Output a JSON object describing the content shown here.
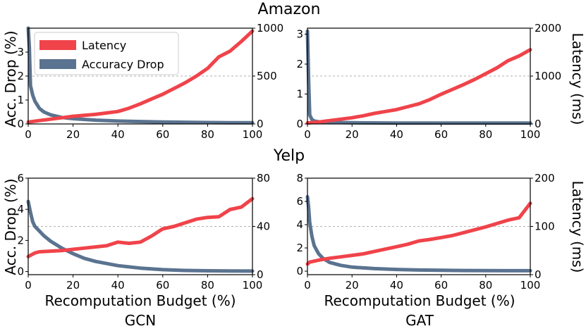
{
  "figure": {
    "row_titles": [
      "Amazon",
      "Yelp"
    ],
    "col_titles": [
      "GCN",
      "GAT"
    ],
    "y_left_label": "Acc. Drop (%)",
    "y_right_label": "Latency (ms)",
    "x_label": "Recomputation Budget (%)"
  },
  "legend": {
    "entries": [
      {
        "label": "Latency",
        "color": "#f0434a"
      },
      {
        "label": "Accuracy Drop",
        "color": "#5a7390"
      }
    ]
  },
  "colors": {
    "latency": "#f0434a",
    "accuracy": "#5a7390",
    "grid": "#b0b0b0"
  },
  "chart_data": [
    {
      "type": "line",
      "row": "Amazon",
      "col": "GCN",
      "xlim": [
        0,
        100
      ],
      "xticks": [
        0,
        20,
        40,
        60,
        80,
        100
      ],
      "ylim_left": [
        0,
        4
      ],
      "yticks_left": [
        0,
        1,
        2,
        3
      ],
      "ylim_right": [
        0,
        1000
      ],
      "yticks_right": [
        0,
        500,
        1000
      ],
      "grid": "horizontal, right axis",
      "series": [
        {
          "name": "Latency",
          "axis": "right",
          "x": [
            0,
            5,
            10,
            15,
            20,
            25,
            30,
            35,
            40,
            45,
            50,
            55,
            60,
            65,
            70,
            75,
            80,
            85,
            90,
            95,
            100
          ],
          "y": [
            20,
            35,
            50,
            65,
            80,
            90,
            100,
            115,
            130,
            165,
            210,
            260,
            310,
            370,
            430,
            500,
            580,
            700,
            760,
            860,
            970
          ]
        },
        {
          "name": "Accuracy Drop",
          "axis": "left",
          "x": [
            0,
            0.5,
            1,
            2,
            3,
            4,
            5,
            7,
            10,
            15,
            20,
            30,
            40,
            50,
            60,
            70,
            80,
            90,
            100
          ],
          "y": [
            4.0,
            3.2,
            1.6,
            1.2,
            0.95,
            0.8,
            0.65,
            0.5,
            0.38,
            0.27,
            0.22,
            0.16,
            0.12,
            0.1,
            0.08,
            0.07,
            0.06,
            0.05,
            0.05
          ]
        }
      ]
    },
    {
      "type": "line",
      "row": "Amazon",
      "col": "GAT",
      "xlim": [
        0,
        100
      ],
      "xticks": [
        0,
        20,
        40,
        60,
        80,
        100
      ],
      "ylim_left": [
        0,
        3.2
      ],
      "yticks_left": [
        0,
        1,
        2,
        3
      ],
      "ylim_right": [
        0,
        2000
      ],
      "yticks_right": [
        0,
        1000,
        2000
      ],
      "grid": "horizontal, right axis",
      "series": [
        {
          "name": "Latency",
          "axis": "right",
          "x": [
            0,
            5,
            10,
            15,
            20,
            25,
            30,
            35,
            40,
            45,
            50,
            55,
            60,
            65,
            70,
            75,
            80,
            85,
            90,
            95,
            100
          ],
          "y": [
            20,
            40,
            70,
            100,
            130,
            170,
            220,
            260,
            300,
            360,
            420,
            510,
            620,
            720,
            820,
            930,
            1050,
            1170,
            1320,
            1420,
            1550
          ]
        },
        {
          "name": "Accuracy Drop",
          "axis": "left",
          "x": [
            0,
            0.5,
            1,
            2,
            3,
            5,
            10,
            20,
            40,
            60,
            80,
            100
          ],
          "y": [
            3.1,
            1.5,
            0.3,
            0.15,
            0.1,
            0.07,
            0.05,
            0.04,
            0.03,
            0.03,
            0.03,
            0.03
          ]
        }
      ]
    },
    {
      "type": "line",
      "row": "Yelp",
      "col": "GCN",
      "xlim": [
        0,
        100
      ],
      "xticks": [
        0,
        20,
        40,
        60,
        80,
        100
      ],
      "ylim_left": [
        -0.2,
        6
      ],
      "yticks_left": [
        0,
        2,
        4,
        6
      ],
      "ylim_right": [
        0,
        80
      ],
      "yticks_right": [
        0,
        40,
        80
      ],
      "grid": "horizontal, right axis",
      "series": [
        {
          "name": "Latency",
          "axis": "right",
          "x": [
            0,
            1,
            3,
            5,
            10,
            15,
            20,
            25,
            30,
            35,
            40,
            45,
            50,
            55,
            60,
            65,
            70,
            75,
            80,
            85,
            90,
            95,
            100
          ],
          "y": [
            15,
            16,
            18,
            19,
            19.5,
            20,
            21,
            22,
            23,
            24,
            27,
            26,
            27,
            32,
            38,
            40,
            43,
            46,
            47.5,
            48,
            54,
            56,
            63
          ]
        },
        {
          "name": "Accuracy Drop",
          "axis": "left",
          "x": [
            0,
            1,
            2,
            3,
            5,
            7,
            10,
            15,
            20,
            25,
            30,
            40,
            50,
            60,
            70,
            80,
            90,
            100
          ],
          "y": [
            4.5,
            3.8,
            3.2,
            2.9,
            2.6,
            2.3,
            1.95,
            1.5,
            1.15,
            0.85,
            0.65,
            0.38,
            0.22,
            0.12,
            0.07,
            0.05,
            0.04,
            0.03
          ]
        }
      ]
    },
    {
      "type": "line",
      "row": "Yelp",
      "col": "GAT",
      "xlim": [
        0,
        100
      ],
      "xticks": [
        0,
        20,
        40,
        60,
        80,
        100
      ],
      "ylim_left": [
        -0.3,
        8
      ],
      "yticks_left": [
        0,
        2,
        4,
        6,
        8
      ],
      "ylim_right": [
        0,
        200
      ],
      "yticks_right": [
        0,
        100,
        200
      ],
      "grid": "horizontal, right axis",
      "series": [
        {
          "name": "Latency",
          "axis": "right",
          "x": [
            0,
            1,
            3,
            5,
            10,
            15,
            20,
            25,
            30,
            35,
            40,
            45,
            50,
            55,
            60,
            65,
            70,
            75,
            80,
            85,
            90,
            95,
            100
          ],
          "y": [
            22,
            26,
            28,
            30,
            34,
            37,
            40,
            43,
            48,
            53,
            58,
            63,
            70,
            73,
            77,
            81,
            87,
            93,
            99,
            106,
            113,
            118,
            148
          ]
        },
        {
          "name": "Accuracy Drop",
          "axis": "left",
          "x": [
            0,
            0.5,
            1,
            2,
            3,
            5,
            7,
            10,
            15,
            20,
            30,
            40,
            50,
            60,
            70,
            80,
            90,
            100
          ],
          "y": [
            6.4,
            5.5,
            4.2,
            3.0,
            2.2,
            1.5,
            1.1,
            0.75,
            0.5,
            0.35,
            0.22,
            0.15,
            0.1,
            0.08,
            0.06,
            0.05,
            0.04,
            0.04
          ]
        }
      ]
    }
  ]
}
